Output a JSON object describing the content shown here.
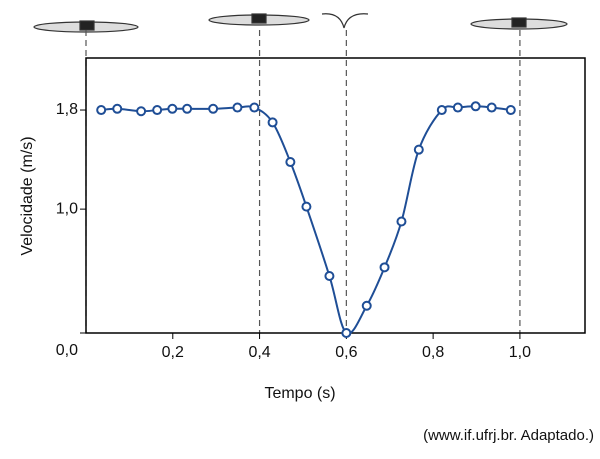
{
  "chart_data": {
    "type": "line",
    "x_label": "Tempo (s)",
    "y_label": "Velocidade (m/s)",
    "source": "(www.if.ufrj.br. Adaptado.)",
    "series": [
      {
        "color": "#1f4e96",
        "x": [
          0.035,
          0.072,
          0.127,
          0.164,
          0.199,
          0.233,
          0.293,
          0.349,
          0.388,
          0.43,
          0.471,
          0.508,
          0.561,
          0.6,
          0.647,
          0.688,
          0.727,
          0.767,
          0.82,
          0.857,
          0.898,
          0.935,
          0.979
        ],
        "values": [
          1.8,
          1.81,
          1.79,
          1.8,
          1.81,
          1.81,
          1.81,
          1.82,
          1.82,
          1.7,
          1.38,
          1.02,
          0.46,
          0.0,
          0.22,
          0.53,
          0.9,
          1.48,
          1.8,
          1.82,
          1.83,
          1.82,
          1.8
        ]
      }
    ],
    "xlim": [
      0,
      1.15
    ],
    "ylim": [
      0,
      2.22
    ],
    "xticks": [
      {
        "value": 0.2,
        "label": "0,2"
      },
      {
        "value": 0.4,
        "label": "0,4"
      },
      {
        "value": 0.6,
        "label": "0,6"
      },
      {
        "value": 0.8,
        "label": "0,8"
      },
      {
        "value": 1.0,
        "label": "1,0"
      }
    ],
    "yticks": [
      {
        "value": 0,
        "label": "0,0"
      },
      {
        "value": 1.0,
        "label": "1,0"
      },
      {
        "value": 1.8,
        "label": "1,8"
      }
    ],
    "vlines": [
      0,
      0.4,
      0.6,
      1.0
    ]
  }
}
